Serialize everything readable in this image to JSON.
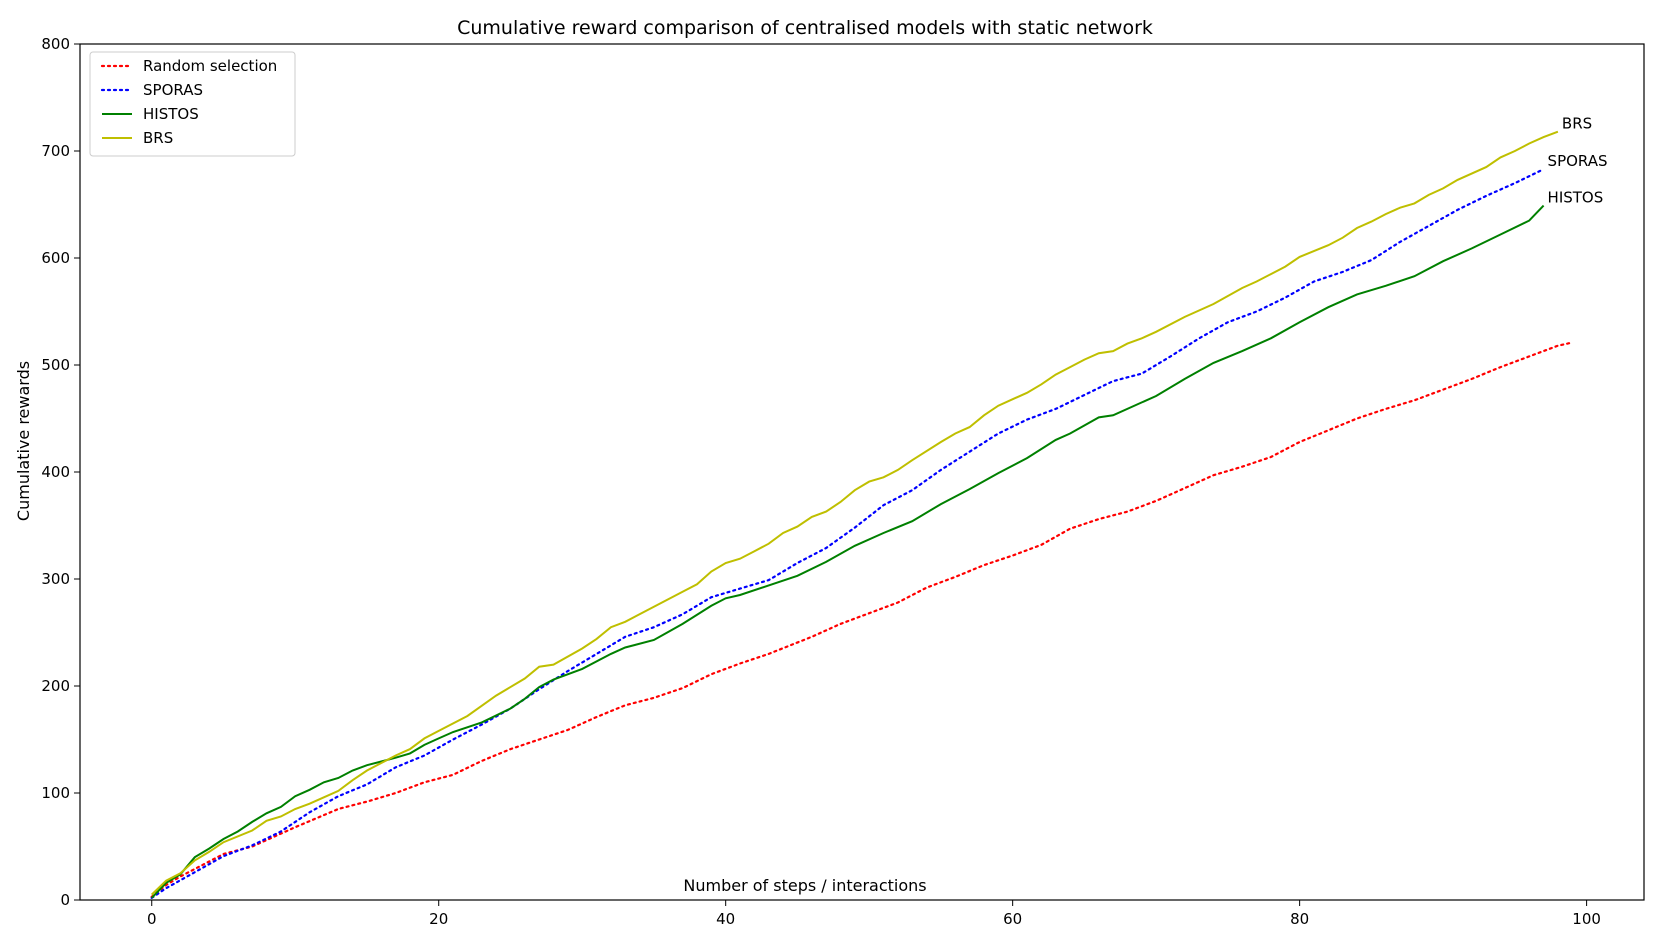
{
  "chart_data": {
    "type": "line",
    "title": "Cumulative reward comparison of centralised models with static network",
    "xlabel": "Number of steps / interactions",
    "ylabel": "Cumulative rewards",
    "xlim": [
      -5,
      104
    ],
    "ylim": [
      0,
      800
    ],
    "xticks": [
      0,
      20,
      40,
      60,
      80,
      100
    ],
    "yticks": [
      0,
      100,
      200,
      300,
      400,
      500,
      600,
      700,
      800
    ],
    "grid": false,
    "legend_position": "top-left",
    "series": [
      {
        "name": "Random selection",
        "color": "#ff0000",
        "style": "dotted",
        "end_label": "",
        "points": [
          [
            0,
            3
          ],
          [
            1,
            14
          ],
          [
            2,
            22
          ],
          [
            3,
            29
          ],
          [
            5,
            43
          ],
          [
            7,
            50
          ],
          [
            10,
            68
          ],
          [
            13,
            85
          ],
          [
            15,
            92
          ],
          [
            17,
            100
          ],
          [
            19,
            110
          ],
          [
            21,
            117
          ],
          [
            23,
            130
          ],
          [
            25,
            141
          ],
          [
            27,
            150
          ],
          [
            29,
            159
          ],
          [
            31,
            171
          ],
          [
            33,
            182
          ],
          [
            35,
            189
          ],
          [
            37,
            198
          ],
          [
            39,
            211
          ],
          [
            41,
            221
          ],
          [
            43,
            230
          ],
          [
            46,
            246
          ],
          [
            48,
            258
          ],
          [
            50,
            268
          ],
          [
            52,
            278
          ],
          [
            54,
            292
          ],
          [
            56,
            302
          ],
          [
            58,
            313
          ],
          [
            60,
            322
          ],
          [
            62,
            332
          ],
          [
            64,
            347
          ],
          [
            66,
            356
          ],
          [
            68,
            363
          ],
          [
            70,
            373
          ],
          [
            72,
            385
          ],
          [
            74,
            397
          ],
          [
            76,
            405
          ],
          [
            78,
            414
          ],
          [
            80,
            428
          ],
          [
            82,
            439
          ],
          [
            84,
            450
          ],
          [
            86,
            459
          ],
          [
            88,
            467
          ],
          [
            90,
            477
          ],
          [
            92,
            487
          ],
          [
            94,
            498
          ],
          [
            96,
            508
          ],
          [
            98,
            518
          ],
          [
            99,
            521
          ]
        ]
      },
      {
        "name": "SPORAS",
        "color": "#0000ff",
        "style": "dotted",
        "end_label": "SPORAS",
        "points": [
          [
            0,
            2
          ],
          [
            1,
            11
          ],
          [
            3,
            26
          ],
          [
            5,
            41
          ],
          [
            7,
            51
          ],
          [
            9,
            64
          ],
          [
            11,
            82
          ],
          [
            13,
            97
          ],
          [
            15,
            108
          ],
          [
            17,
            124
          ],
          [
            19,
            135
          ],
          [
            21,
            150
          ],
          [
            23,
            164
          ],
          [
            25,
            179
          ],
          [
            27,
            197
          ],
          [
            29,
            214
          ],
          [
            31,
            230
          ],
          [
            33,
            246
          ],
          [
            35,
            255
          ],
          [
            37,
            267
          ],
          [
            39,
            283
          ],
          [
            41,
            291
          ],
          [
            43,
            299
          ],
          [
            45,
            315
          ],
          [
            47,
            329
          ],
          [
            49,
            348
          ],
          [
            51,
            369
          ],
          [
            53,
            383
          ],
          [
            55,
            402
          ],
          [
            57,
            419
          ],
          [
            59,
            436
          ],
          [
            61,
            449
          ],
          [
            63,
            459
          ],
          [
            65,
            472
          ],
          [
            67,
            485
          ],
          [
            69,
            492
          ],
          [
            71,
            508
          ],
          [
            73,
            525
          ],
          [
            75,
            540
          ],
          [
            77,
            550
          ],
          [
            79,
            563
          ],
          [
            81,
            578
          ],
          [
            83,
            587
          ],
          [
            85,
            598
          ],
          [
            87,
            615
          ],
          [
            89,
            630
          ],
          [
            91,
            645
          ],
          [
            93,
            658
          ],
          [
            95,
            670
          ],
          [
            97,
            683
          ]
        ]
      },
      {
        "name": "HISTOS",
        "color": "#008000",
        "style": "solid",
        "end_label": "HISTOS",
        "points": [
          [
            0,
            2
          ],
          [
            1,
            16
          ],
          [
            2,
            24
          ],
          [
            3,
            40
          ],
          [
            4,
            48
          ],
          [
            5,
            57
          ],
          [
            6,
            64
          ],
          [
            7,
            73
          ],
          [
            8,
            81
          ],
          [
            9,
            87
          ],
          [
            10,
            97
          ],
          [
            11,
            103
          ],
          [
            12,
            110
          ],
          [
            13,
            114
          ],
          [
            14,
            121
          ],
          [
            15,
            126
          ],
          [
            17,
            133
          ],
          [
            18,
            137
          ],
          [
            19,
            145
          ],
          [
            20,
            151
          ],
          [
            21,
            157
          ],
          [
            23,
            166
          ],
          [
            25,
            179
          ],
          [
            26,
            188
          ],
          [
            27,
            199
          ],
          [
            28,
            206
          ],
          [
            30,
            216
          ],
          [
            32,
            230
          ],
          [
            33,
            236
          ],
          [
            35,
            243
          ],
          [
            37,
            258
          ],
          [
            39,
            275
          ],
          [
            40,
            282
          ],
          [
            41,
            285
          ],
          [
            43,
            294
          ],
          [
            45,
            303
          ],
          [
            47,
            316
          ],
          [
            49,
            331
          ],
          [
            51,
            343
          ],
          [
            53,
            354
          ],
          [
            55,
            370
          ],
          [
            57,
            384
          ],
          [
            59,
            399
          ],
          [
            61,
            413
          ],
          [
            63,
            430
          ],
          [
            64,
            436
          ],
          [
            66,
            451
          ],
          [
            67,
            453
          ],
          [
            69,
            465
          ],
          [
            70,
            471
          ],
          [
            72,
            487
          ],
          [
            74,
            502
          ],
          [
            76,
            513
          ],
          [
            78,
            525
          ],
          [
            80,
            540
          ],
          [
            82,
            554
          ],
          [
            84,
            566
          ],
          [
            86,
            574
          ],
          [
            88,
            583
          ],
          [
            90,
            597
          ],
          [
            92,
            609
          ],
          [
            94,
            622
          ],
          [
            96,
            635
          ],
          [
            97,
            649
          ]
        ]
      },
      {
        "name": "BRS",
        "color": "#bfbf00",
        "style": "solid",
        "end_label": "BRS",
        "points": [
          [
            0,
            5
          ],
          [
            1,
            18
          ],
          [
            2,
            25
          ],
          [
            3,
            37
          ],
          [
            4,
            45
          ],
          [
            5,
            54
          ],
          [
            7,
            65
          ],
          [
            8,
            74
          ],
          [
            9,
            78
          ],
          [
            10,
            85
          ],
          [
            11,
            90
          ],
          [
            12,
            96
          ],
          [
            13,
            102
          ],
          [
            14,
            112
          ],
          [
            15,
            121
          ],
          [
            17,
            135
          ],
          [
            18,
            141
          ],
          [
            19,
            151
          ],
          [
            20,
            158
          ],
          [
            22,
            172
          ],
          [
            24,
            191
          ],
          [
            26,
            207
          ],
          [
            27,
            218
          ],
          [
            28,
            220
          ],
          [
            30,
            235
          ],
          [
            31,
            244
          ],
          [
            32,
            255
          ],
          [
            33,
            260
          ],
          [
            35,
            274
          ],
          [
            37,
            288
          ],
          [
            38,
            295
          ],
          [
            39,
            307
          ],
          [
            40,
            315
          ],
          [
            41,
            319
          ],
          [
            42,
            326
          ],
          [
            43,
            333
          ],
          [
            44,
            343
          ],
          [
            45,
            349
          ],
          [
            46,
            358
          ],
          [
            47,
            363
          ],
          [
            48,
            372
          ],
          [
            49,
            383
          ],
          [
            50,
            391
          ],
          [
            51,
            395
          ],
          [
            52,
            402
          ],
          [
            53,
            411
          ],
          [
            55,
            428
          ],
          [
            56,
            436
          ],
          [
            57,
            442
          ],
          [
            58,
            453
          ],
          [
            59,
            462
          ],
          [
            60,
            468
          ],
          [
            61,
            474
          ],
          [
            62,
            482
          ],
          [
            63,
            491
          ],
          [
            64,
            498
          ],
          [
            65,
            505
          ],
          [
            66,
            511
          ],
          [
            67,
            513
          ],
          [
            68,
            520
          ],
          [
            69,
            525
          ],
          [
            70,
            531
          ],
          [
            72,
            545
          ],
          [
            74,
            557
          ],
          [
            76,
            572
          ],
          [
            77,
            578
          ],
          [
            78,
            585
          ],
          [
            79,
            592
          ],
          [
            80,
            601
          ],
          [
            82,
            612
          ],
          [
            83,
            619
          ],
          [
            84,
            628
          ],
          [
            85,
            634
          ],
          [
            86,
            641
          ],
          [
            87,
            647
          ],
          [
            88,
            651
          ],
          [
            89,
            659
          ],
          [
            90,
            665
          ],
          [
            91,
            673
          ],
          [
            93,
            685
          ],
          [
            94,
            694
          ],
          [
            95,
            700
          ],
          [
            96,
            707
          ],
          [
            97,
            713
          ],
          [
            98,
            718
          ]
        ]
      }
    ]
  }
}
